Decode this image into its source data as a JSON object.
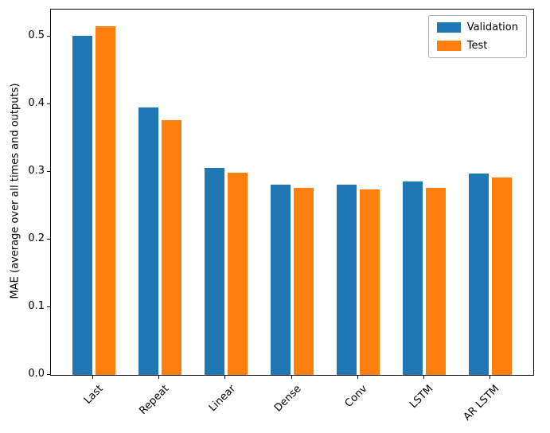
{
  "chart_data": {
    "type": "bar",
    "title": "",
    "xlabel": "",
    "ylabel": "MAE (average over all times and outputs)",
    "categories": [
      "Last",
      "Repeat",
      "Linear",
      "Dense",
      "Conv",
      "LSTM",
      "AR LSTM"
    ],
    "series": [
      {
        "name": "Validation",
        "color": "#1f77b4",
        "values": [
          0.501,
          0.395,
          0.306,
          0.281,
          0.281,
          0.286,
          0.298
        ]
      },
      {
        "name": "Test",
        "color": "#ff7f0e",
        "values": [
          0.515,
          0.377,
          0.299,
          0.277,
          0.274,
          0.277,
          0.292
        ]
      }
    ],
    "ylim": [
      0,
      0.54
    ],
    "yticks": [
      0.0,
      0.1,
      0.2,
      0.3,
      0.4,
      0.5
    ],
    "xtick_rotation": 45,
    "grid": false,
    "legend_position": "upper right",
    "bar_group_offset": 0.34,
    "bar_width": 0.3
  }
}
